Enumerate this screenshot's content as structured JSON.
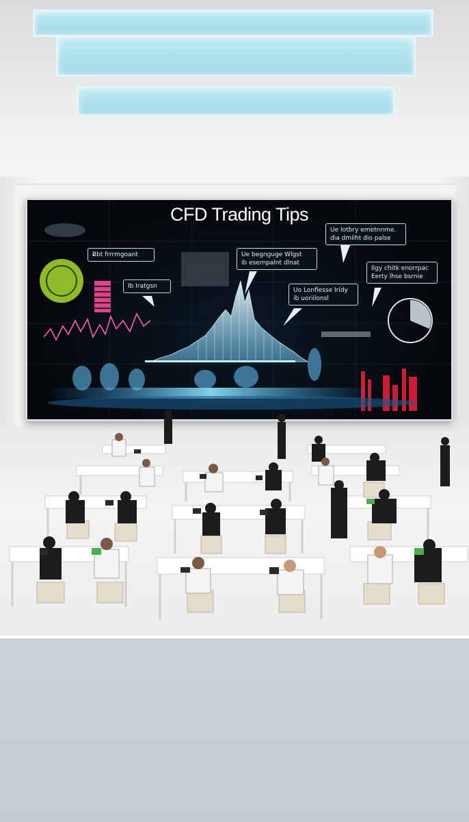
{
  "screen": {
    "title": "CFD Trading Tips",
    "bubbles": [
      "Ƀbt frrrmgoant",
      "Ib Iratgsn",
      "Ue begnguge Wlgst\nib esernpalnt dlnat",
      "Ue Iotbry emetnnme.\ndia dmilht dio palse",
      "Uo Lonfiesse Iridy\nib uoriilonsl",
      "Ilgy chitk enorrpac\nEerty lhse bsrnie"
    ]
  },
  "colors": {
    "screen_bg": "#05080c",
    "chart_glow": "#9fe6ff",
    "accent_green": "#9ecf2b",
    "accent_pink": "#ff4fa0",
    "accent_red": "#e0203a"
  }
}
